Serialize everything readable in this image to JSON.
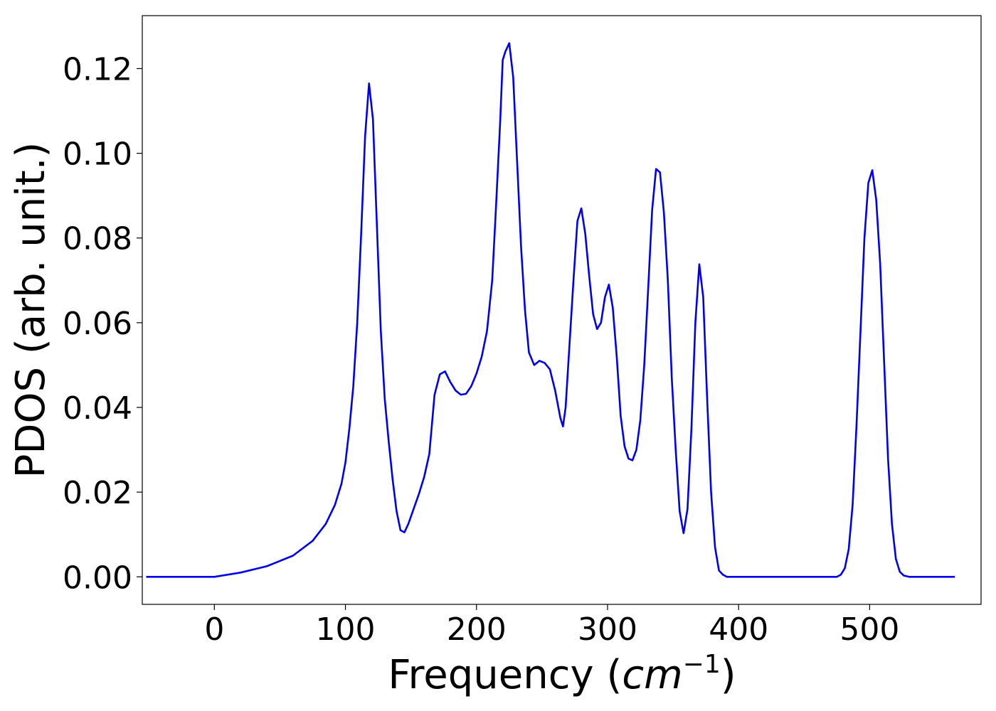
{
  "chart_data": {
    "type": "line",
    "title": "",
    "xlabel_text": "Frequency (",
    "xlabel_math_base": "cm",
    "xlabel_math_exp": "−1",
    "xlabel_close": ")",
    "ylabel": "PDOS (arb. unit.)",
    "xlim": [
      -55,
      585
    ],
    "ylim": [
      -0.0065,
      0.1325
    ],
    "xticks": [
      0,
      100,
      200,
      300,
      400,
      500
    ],
    "xtick_labels": [
      "0",
      "100",
      "200",
      "300",
      "400",
      "500"
    ],
    "yticks": [
      0.0,
      0.02,
      0.04,
      0.06,
      0.08,
      0.1,
      0.12
    ],
    "ytick_labels": [
      "0.00",
      "0.02",
      "0.04",
      "0.06",
      "0.08",
      "0.10",
      "0.12"
    ],
    "grid": false,
    "legend": "none",
    "series": [
      {
        "color": "#0000ee",
        "x": [
          -52,
          0,
          20,
          40,
          60,
          75,
          85,
          92,
          97,
          100,
          103,
          106,
          109,
          112,
          115,
          118,
          121,
          124,
          127,
          130,
          133,
          136,
          139,
          142,
          145,
          148,
          152,
          156,
          160,
          164,
          168,
          172,
          176,
          180,
          184,
          188,
          192,
          196,
          200,
          204,
          208,
          212,
          215,
          218,
          220,
          222,
          225,
          228,
          231,
          234,
          237,
          240,
          244,
          248,
          252,
          256,
          260,
          264,
          266,
          268,
          271,
          274,
          277,
          280,
          283,
          286,
          289,
          292,
          295,
          298,
          301,
          304,
          307,
          310,
          313,
          316,
          319,
          322,
          325,
          328,
          331,
          334,
          337,
          340,
          343,
          346,
          349,
          352,
          355,
          358,
          361,
          364,
          367,
          370,
          373,
          376,
          379,
          382,
          385,
          388,
          391,
          395,
          400,
          420,
          450,
          475,
          478,
          481,
          484,
          487,
          490,
          493,
          496,
          499,
          502,
          505,
          508,
          511,
          514,
          517,
          520,
          523,
          526,
          530,
          565
        ],
        "y": [
          0,
          0,
          0.001,
          0.0025,
          0.005,
          0.0085,
          0.0125,
          0.017,
          0.022,
          0.027,
          0.035,
          0.045,
          0.06,
          0.081,
          0.104,
          0.1165,
          0.108,
          0.083,
          0.058,
          0.042,
          0.032,
          0.023,
          0.0155,
          0.011,
          0.0105,
          0.0125,
          0.016,
          0.0195,
          0.0235,
          0.029,
          0.043,
          0.0478,
          0.0485,
          0.046,
          0.044,
          0.043,
          0.0432,
          0.045,
          0.048,
          0.052,
          0.058,
          0.07,
          0.088,
          0.107,
          0.122,
          0.124,
          0.126,
          0.118,
          0.098,
          0.078,
          0.063,
          0.053,
          0.05,
          0.051,
          0.0505,
          0.049,
          0.044,
          0.0375,
          0.0355,
          0.04,
          0.055,
          0.07,
          0.084,
          0.087,
          0.081,
          0.071,
          0.062,
          0.0585,
          0.06,
          0.066,
          0.069,
          0.0635,
          0.052,
          0.038,
          0.0308,
          0.0279,
          0.0275,
          0.03,
          0.037,
          0.05,
          0.068,
          0.0865,
          0.0963,
          0.0955,
          0.086,
          0.07,
          0.047,
          0.03,
          0.0155,
          0.0103,
          0.016,
          0.035,
          0.06,
          0.0738,
          0.066,
          0.042,
          0.02,
          0.007,
          0.0015,
          0.0005,
          0,
          0,
          0,
          0,
          0,
          0,
          0.0005,
          0.002,
          0.0065,
          0.017,
          0.036,
          0.058,
          0.08,
          0.093,
          0.096,
          0.089,
          0.074,
          0.051,
          0.028,
          0.0125,
          0.0042,
          0.0012,
          0.0003,
          0,
          0
        ]
      }
    ]
  }
}
